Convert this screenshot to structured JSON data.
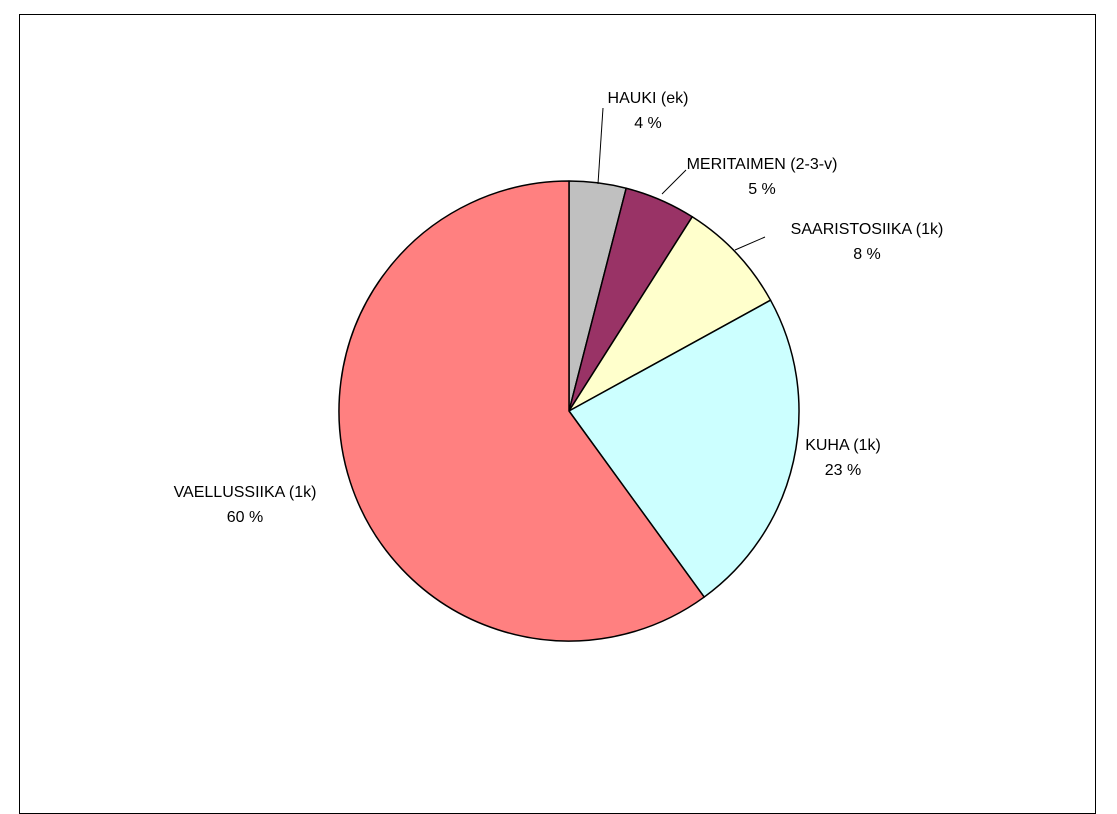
{
  "chart_data": {
    "type": "pie",
    "slices": [
      {
        "label": "HAUKI (ek)",
        "value_label": "4 %",
        "value": 4,
        "color": "#C0C0C0"
      },
      {
        "label": "MERITAIMEN (2-3-v)",
        "value_label": "5 %",
        "value": 5,
        "color": "#993366"
      },
      {
        "label": "SAARISTOSIIKA (1k)",
        "value_label": "8 %",
        "value": 8,
        "color": "#FFFFCC"
      },
      {
        "label": "KUHA (1k)",
        "value_label": "23 %",
        "value": 23,
        "color": "#CCFFFF"
      },
      {
        "label": "VAELLUSSIIKA (1k)",
        "value_label": "60 %",
        "value": 60,
        "color": "#FF8080"
      }
    ],
    "start": "12 o'clock",
    "direction": "clockwise"
  }
}
